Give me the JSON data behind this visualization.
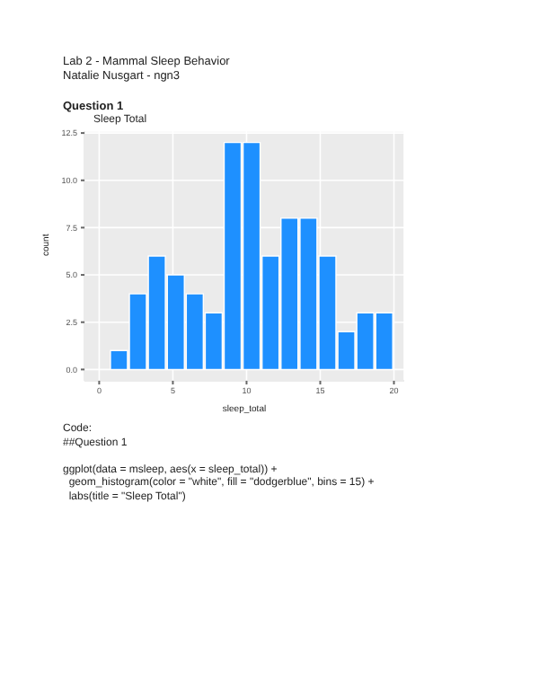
{
  "chart_data": {
    "type": "histogram",
    "title": "Sleep Total",
    "xlabel": "sleep_total",
    "ylabel": "count",
    "bins": [
      0.64,
      1.93,
      3.21,
      4.5,
      5.79,
      7.07,
      8.36,
      9.64,
      10.93,
      12.21,
      13.5,
      14.79,
      16.07,
      17.36,
      18.64,
      19.93
    ],
    "values": [
      1,
      4,
      6,
      5,
      4,
      3,
      12,
      12,
      6,
      8,
      8,
      6,
      2,
      3,
      3
    ],
    "color": "#1e90ff",
    "xlim": [
      -1,
      20.7
    ],
    "xticks": [
      0,
      5,
      10,
      15,
      20
    ],
    "ylim": [
      -0.6,
      12.6
    ],
    "yticks": [
      {
        "value": 0,
        "label": "0.0"
      },
      {
        "value": 2.5,
        "label": "2.5"
      },
      {
        "value": 5,
        "label": "5.0"
      },
      {
        "value": 7.5,
        "label": "7.5"
      },
      {
        "value": 10,
        "label": "10.0"
      },
      {
        "value": 12.5,
        "label": "12.5"
      }
    ],
    "grid": true,
    "annotations": [
      "Lab 2 - Mammal Sleep Behavior",
      "Natalie Nusgart - ngn3",
      "Question 1",
      "Code:",
      "##Question 1",
      "ggplot(data = msleep, aes(x = sleep_total)) +",
      "  geom_histogram(color = \"white\", fill = \"dodgerblue\", bins = 15) +",
      "  labs(title = \"Sleep Total\")"
    ]
  }
}
